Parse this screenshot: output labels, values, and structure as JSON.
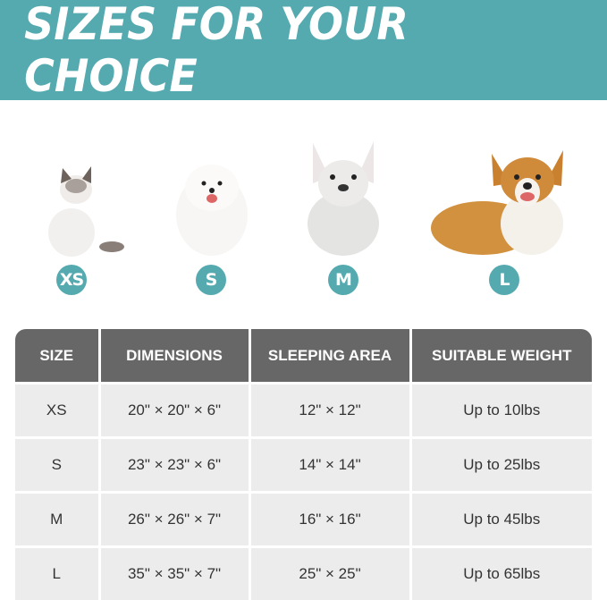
{
  "title": "SIZES FOR YOUR CHOICE",
  "colors": {
    "accent": "#55aab0",
    "header": "#676767",
    "row": "#ececec"
  },
  "pets": [
    {
      "badge": "XS",
      "animal": "cat"
    },
    {
      "badge": "S",
      "animal": "pomeranian"
    },
    {
      "badge": "M",
      "animal": "french-bulldog"
    },
    {
      "badge": "L",
      "animal": "corgi"
    }
  ],
  "table": {
    "headers": [
      "SIZE",
      "DIMENSIONS",
      "SLEEPING AREA",
      "SUITABLE WEIGHT"
    ],
    "rows": [
      [
        "XS",
        "20\" × 20\" × 6\"",
        "12\" × 12\"",
        "Up to 10lbs"
      ],
      [
        "S",
        "23\" × 23\" × 6\"",
        "14\" × 14\"",
        "Up to 25lbs"
      ],
      [
        "M",
        "26\" × 26\" × 7\"",
        "16\" × 16\"",
        "Up to 45lbs"
      ],
      [
        "L",
        "35\" × 35\" × 7\"",
        "25\" × 25\"",
        "Up to 65lbs"
      ]
    ]
  }
}
